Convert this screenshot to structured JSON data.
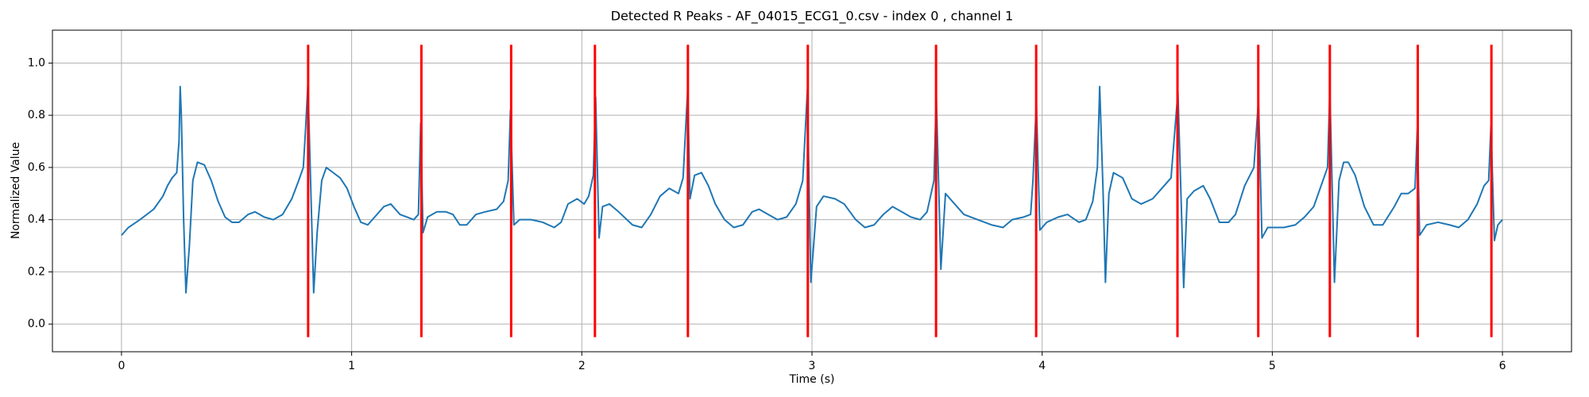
{
  "chart_data": {
    "type": "line",
    "title": "Detected R Peaks - AF_04015_ECG1_0.csv - index 0 , channel 1",
    "xlabel": "Time (s)",
    "ylabel": "Normalized Value",
    "x": [
      0.0,
      0.03,
      0.08,
      0.14,
      0.18,
      0.2,
      0.22,
      0.24,
      0.25,
      0.255,
      0.26,
      0.27,
      0.28,
      0.295,
      0.31,
      0.33,
      0.36,
      0.39,
      0.42,
      0.45,
      0.48,
      0.51,
      0.55,
      0.58,
      0.62,
      0.66,
      0.7,
      0.74,
      0.77,
      0.79,
      0.8,
      0.81,
      0.82,
      0.835,
      0.85,
      0.87,
      0.89,
      0.92,
      0.95,
      0.98,
      1.01,
      1.04,
      1.07,
      1.1,
      1.14,
      1.17,
      1.21,
      1.24,
      1.27,
      1.29,
      1.3,
      1.31,
      1.33,
      1.37,
      1.41,
      1.44,
      1.47,
      1.5,
      1.54,
      1.58,
      1.63,
      1.66,
      1.68,
      1.69,
      1.705,
      1.73,
      1.78,
      1.83,
      1.88,
      1.91,
      1.94,
      1.98,
      2.01,
      2.03,
      2.05,
      2.06,
      2.075,
      2.09,
      2.12,
      2.16,
      2.22,
      2.26,
      2.3,
      2.34,
      2.38,
      2.42,
      2.44,
      2.46,
      2.47,
      2.49,
      2.52,
      2.55,
      2.58,
      2.62,
      2.66,
      2.7,
      2.74,
      2.77,
      2.81,
      2.85,
      2.89,
      2.93,
      2.96,
      2.98,
      2.995,
      3.02,
      3.05,
      3.1,
      3.14,
      3.19,
      3.23,
      3.27,
      3.31,
      3.35,
      3.39,
      3.43,
      3.47,
      3.5,
      3.53,
      3.54,
      3.56,
      3.58,
      3.62,
      3.66,
      3.72,
      3.78,
      3.83,
      3.87,
      3.92,
      3.95,
      3.96,
      3.975,
      3.99,
      4.02,
      4.07,
      4.11,
      4.16,
      4.19,
      4.22,
      4.24,
      4.25,
      4.265,
      4.275,
      4.29,
      4.31,
      4.35,
      4.39,
      4.43,
      4.48,
      4.53,
      4.56,
      4.59,
      4.615,
      4.63,
      4.66,
      4.7,
      4.73,
      4.77,
      4.81,
      4.84,
      4.88,
      4.92,
      4.94,
      4.955,
      4.98,
      5.05,
      5.1,
      5.14,
      5.18,
      5.22,
      5.24,
      5.25,
      5.27,
      5.29,
      5.31,
      5.33,
      5.36,
      5.4,
      5.44,
      5.48,
      5.53,
      5.56,
      5.59,
      5.62,
      5.63,
      5.64,
      5.67,
      5.72,
      5.77,
      5.81,
      5.85,
      5.89,
      5.92,
      5.94,
      5.95,
      5.965,
      5.98,
      6.0
    ],
    "series": [
      {
        "color": "#1f77b4",
        "values": [
          0.34,
          0.37,
          0.4,
          0.44,
          0.49,
          0.53,
          0.56,
          0.58,
          0.7,
          0.91,
          0.8,
          0.4,
          0.12,
          0.3,
          0.55,
          0.62,
          0.61,
          0.55,
          0.47,
          0.41,
          0.39,
          0.39,
          0.42,
          0.43,
          0.41,
          0.4,
          0.42,
          0.48,
          0.55,
          0.6,
          0.75,
          0.92,
          0.6,
          0.12,
          0.35,
          0.55,
          0.6,
          0.58,
          0.56,
          0.52,
          0.45,
          0.39,
          0.38,
          0.41,
          0.45,
          0.46,
          0.42,
          0.41,
          0.4,
          0.42,
          0.77,
          0.35,
          0.41,
          0.43,
          0.43,
          0.42,
          0.38,
          0.38,
          0.42,
          0.43,
          0.44,
          0.47,
          0.55,
          0.82,
          0.38,
          0.4,
          0.4,
          0.39,
          0.37,
          0.39,
          0.46,
          0.48,
          0.46,
          0.49,
          0.57,
          0.87,
          0.33,
          0.45,
          0.46,
          0.43,
          0.38,
          0.37,
          0.42,
          0.49,
          0.52,
          0.5,
          0.56,
          0.9,
          0.48,
          0.57,
          0.58,
          0.53,
          0.46,
          0.4,
          0.37,
          0.38,
          0.43,
          0.44,
          0.42,
          0.4,
          0.41,
          0.46,
          0.55,
          0.9,
          0.16,
          0.45,
          0.49,
          0.48,
          0.46,
          0.4,
          0.37,
          0.38,
          0.42,
          0.45,
          0.43,
          0.41,
          0.4,
          0.43,
          0.55,
          0.88,
          0.21,
          0.5,
          0.46,
          0.42,
          0.4,
          0.38,
          0.37,
          0.4,
          0.41,
          0.42,
          0.55,
          0.85,
          0.36,
          0.39,
          0.41,
          0.42,
          0.39,
          0.4,
          0.47,
          0.6,
          0.91,
          0.5,
          0.16,
          0.5,
          0.58,
          0.56,
          0.48,
          0.46,
          0.48,
          0.53,
          0.56,
          0.89,
          0.14,
          0.48,
          0.51,
          0.53,
          0.48,
          0.39,
          0.39,
          0.42,
          0.53,
          0.6,
          0.86,
          0.33,
          0.37,
          0.37,
          0.38,
          0.41,
          0.45,
          0.55,
          0.6,
          0.9,
          0.16,
          0.55,
          0.62,
          0.62,
          0.57,
          0.45,
          0.38,
          0.38,
          0.45,
          0.5,
          0.5,
          0.52,
          0.75,
          0.34,
          0.38,
          0.39,
          0.38,
          0.37,
          0.4,
          0.46,
          0.53,
          0.55,
          0.76,
          0.32,
          0.38,
          0.4
        ]
      }
    ],
    "vlines": {
      "x": [
        0.811,
        1.303,
        1.693,
        2.057,
        2.461,
        2.982,
        3.539,
        3.974,
        4.588,
        4.939,
        5.25,
        5.632,
        5.952
      ],
      "ymin": -0.05,
      "ymax": 1.07,
      "color": "#ff0000"
    },
    "xlim": [
      -0.3,
      6.3
    ],
    "xticks": [
      0,
      1,
      2,
      3,
      4,
      5,
      6
    ],
    "ylim": [
      -0.106,
      1.126
    ],
    "yticks": [
      {
        "value": 0,
        "label": "0.0"
      },
      0.2,
      0.4,
      0.6,
      0.8,
      {
        "value": 1,
        "label": "1.0"
      }
    ],
    "grid": true
  }
}
